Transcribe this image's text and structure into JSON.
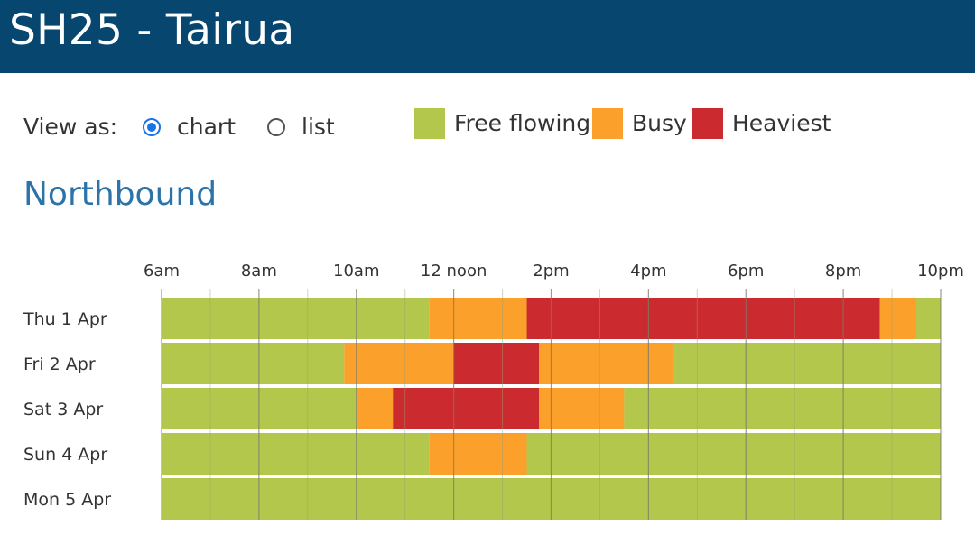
{
  "header": {
    "title": "SH25 - Tairua"
  },
  "view": {
    "label": "View as:",
    "options": [
      {
        "label": "chart",
        "checked": true
      },
      {
        "label": "list",
        "checked": false
      }
    ]
  },
  "legend": [
    {
      "label": "Free flowing",
      "color": "#b2c74b"
    },
    {
      "label": "Busy",
      "color": "#fba02b"
    },
    {
      "label": "Heaviest",
      "color": "#cb2b2f"
    }
  ],
  "section": {
    "title": "Northbound"
  },
  "chart_data": {
    "type": "timeline",
    "title": "",
    "x_ticks": [
      {
        "hour": 6,
        "label": "6am"
      },
      {
        "hour": 8,
        "label": "8am"
      },
      {
        "hour": 10,
        "label": "10am"
      },
      {
        "hour": 12,
        "label": "12 noon"
      },
      {
        "hour": 14,
        "label": "2pm"
      },
      {
        "hour": 16,
        "label": "4pm"
      },
      {
        "hour": 18,
        "label": "6pm"
      },
      {
        "hour": 20,
        "label": "8pm"
      },
      {
        "hour": 22,
        "label": "10pm"
      }
    ],
    "x_range_hours": [
      6,
      22
    ],
    "gridline_interval_hours": 1,
    "colors": {
      "free": "#b2c74b",
      "busy": "#fba02b",
      "heavy": "#cb2b2f"
    },
    "days": [
      {
        "label": "Thu 1 Apr",
        "segments": [
          {
            "start": 6,
            "end": 11.5,
            "level": "free"
          },
          {
            "start": 11.5,
            "end": 13.5,
            "level": "busy"
          },
          {
            "start": 13.5,
            "end": 20.75,
            "level": "heavy"
          },
          {
            "start": 20.75,
            "end": 21.5,
            "level": "busy"
          },
          {
            "start": 21.5,
            "end": 22,
            "level": "free"
          }
        ]
      },
      {
        "label": "Fri 2 Apr",
        "segments": [
          {
            "start": 6,
            "end": 9.75,
            "level": "free"
          },
          {
            "start": 9.75,
            "end": 12,
            "level": "busy"
          },
          {
            "start": 12,
            "end": 13.75,
            "level": "heavy"
          },
          {
            "start": 13.75,
            "end": 16.5,
            "level": "busy"
          },
          {
            "start": 16.5,
            "end": 22,
            "level": "free"
          }
        ]
      },
      {
        "label": "Sat 3 Apr",
        "segments": [
          {
            "start": 6,
            "end": 10,
            "level": "free"
          },
          {
            "start": 10,
            "end": 10.75,
            "level": "busy"
          },
          {
            "start": 10.75,
            "end": 13.75,
            "level": "heavy"
          },
          {
            "start": 13.75,
            "end": 15.5,
            "level": "busy"
          },
          {
            "start": 15.5,
            "end": 22,
            "level": "free"
          }
        ]
      },
      {
        "label": "Sun 4 Apr",
        "segments": [
          {
            "start": 6,
            "end": 11.5,
            "level": "free"
          },
          {
            "start": 11.5,
            "end": 13.5,
            "level": "busy"
          },
          {
            "start": 13.5,
            "end": 22,
            "level": "free"
          }
        ]
      },
      {
        "label": "Mon 5 Apr",
        "segments": [
          {
            "start": 6,
            "end": 22,
            "level": "free"
          }
        ]
      }
    ]
  }
}
